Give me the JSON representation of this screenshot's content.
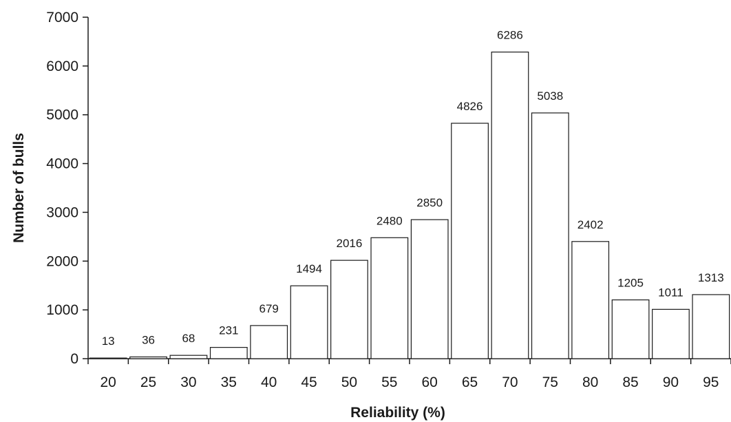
{
  "chart_data": {
    "type": "bar",
    "categories": [
      "20",
      "25",
      "30",
      "35",
      "40",
      "45",
      "50",
      "55",
      "60",
      "65",
      "70",
      "75",
      "80",
      "85",
      "90",
      "95"
    ],
    "values": [
      13,
      36,
      68,
      231,
      679,
      1494,
      2016,
      2480,
      2850,
      4826,
      6286,
      5038,
      2402,
      1205,
      1011,
      1313
    ],
    "data_labels": [
      "13",
      "36",
      "68",
      "231",
      "679",
      "1494",
      "2016",
      "2480",
      "2850",
      "4826",
      "6286",
      "5038",
      "2402",
      "1205",
      "1011",
      "1313"
    ],
    "title": "",
    "xlabel": "Reliability (%)",
    "ylabel": "Number of bulls",
    "ylim": [
      0,
      7000
    ],
    "yticks": [
      "0",
      "1000",
      "2000",
      "3000",
      "4000",
      "5000",
      "6000",
      "7000"
    ],
    "grid": false,
    "legend": "none",
    "colors": {
      "bar_fill": "#ffffff",
      "bar_stroke": "#1a1a1a",
      "text": "#1a1a1a"
    }
  }
}
